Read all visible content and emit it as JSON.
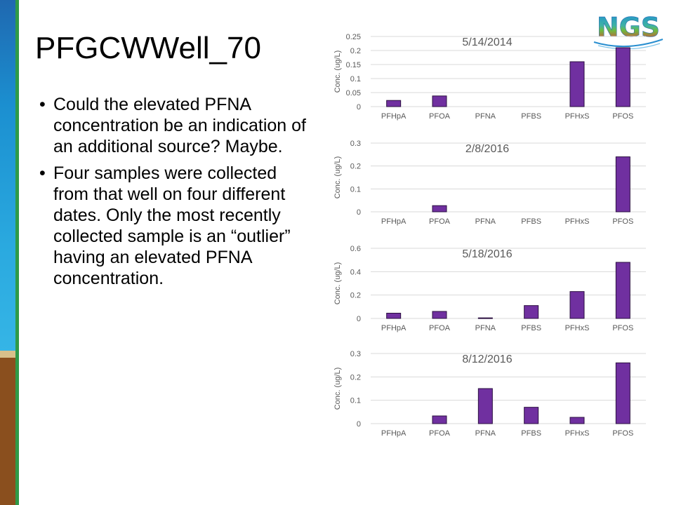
{
  "slide": {
    "title": "PFGCWWell_70",
    "bullets": [
      "Could the elevated PFNA concentration be an indication of an additional source?  Maybe.",
      "Four samples were collected from that well on four different dates.  Only the most recently collected sample is an “outlier” having an elevated PFNA concentration."
    ],
    "logo_text": "NGS"
  },
  "chart_data": [
    {
      "type": "bar",
      "title": "5/14/2014",
      "ylabel": "Conc.  (ug/L)",
      "categories": [
        "PFHpA",
        "PFOA",
        "PFNA",
        "PFBS",
        "PFHxS",
        "PFOS"
      ],
      "values": [
        0.022,
        0.038,
        0,
        0,
        0.16,
        0.21
      ],
      "ylim": [
        0,
        0.25
      ],
      "yticks": [
        0,
        0.05,
        0.1,
        0.15,
        0.2,
        0.25
      ],
      "ytick_labels": [
        "0",
        "0.05",
        "0.1",
        "0.15",
        "0.2",
        "0.25"
      ],
      "color": "#7030a0"
    },
    {
      "type": "bar",
      "title": "2/8/2016",
      "ylabel": "Conc.  (ug/L)",
      "categories": [
        "PFHpA",
        "PFOA",
        "PFNA",
        "PFBS",
        "PFHxS",
        "PFOS"
      ],
      "values": [
        0,
        0.027,
        0,
        0,
        0,
        0.24
      ],
      "ylim": [
        0,
        0.3
      ],
      "yticks": [
        0,
        0.1,
        0.2,
        0.3
      ],
      "ytick_labels": [
        "0",
        "0.1",
        "0.2",
        "0.3"
      ],
      "color": "#7030a0"
    },
    {
      "type": "bar",
      "title": "5/18/2016",
      "ylabel": "Conc.  (ug/L)",
      "categories": [
        "PFHpA",
        "PFOA",
        "PFNA",
        "PFBS",
        "PFHxS",
        "PFOS"
      ],
      "values": [
        0.045,
        0.06,
        0.005,
        0.11,
        0.23,
        0.48
      ],
      "ylim": [
        0,
        0.6
      ],
      "yticks": [
        0,
        0.2,
        0.4,
        0.6
      ],
      "ytick_labels": [
        "0",
        "0.2",
        "0.4",
        "0.6"
      ],
      "color": "#7030a0"
    },
    {
      "type": "bar",
      "title": "8/12/2016",
      "ylabel": "Conc.  (ug/L)",
      "categories": [
        "PFHpA",
        "PFOA",
        "PFNA",
        "PFBS",
        "PFHxS",
        "PFOS"
      ],
      "values": [
        0,
        0.033,
        0.15,
        0.07,
        0.027,
        0.26
      ],
      "ylim": [
        0,
        0.3
      ],
      "yticks": [
        0,
        0.1,
        0.2,
        0.3
      ],
      "ytick_labels": [
        "0",
        "0.1",
        "0.2",
        "0.3"
      ],
      "color": "#7030a0"
    }
  ]
}
